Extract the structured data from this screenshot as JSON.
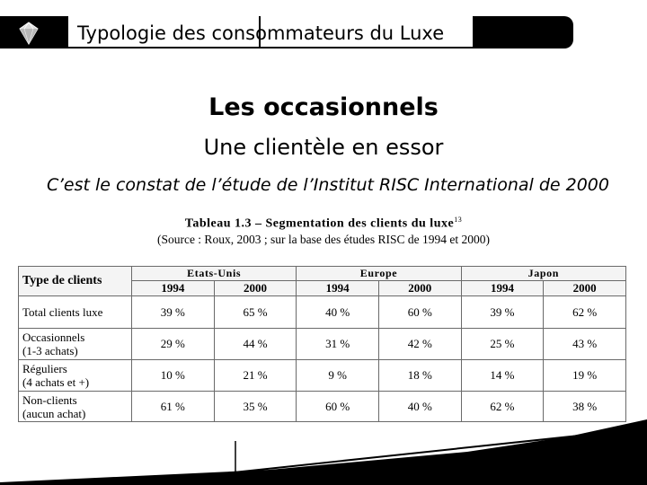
{
  "header": {
    "title": "Typologie des consommateurs du Luxe"
  },
  "heading": "Les occasionnels",
  "subheading": "Une clientèle en essor",
  "description": "C’est le constat de l’étude de l’Institut RISC International de 2000",
  "table": {
    "title": "Tableau 1.3 – Segmentation des clients du luxe",
    "footnote_ref": "13",
    "source": "(Source : Roux, 2003 ; sur la base des études RISC de 1994 et 2000)",
    "type_header": "Type de clients",
    "regions": [
      "Etats-Unis",
      "Europe",
      "Japon"
    ],
    "years": [
      "1994",
      "2000",
      "1994",
      "2000",
      "1994",
      "2000"
    ],
    "rows": [
      {
        "label": [
          "Total clients luxe"
        ],
        "values": [
          "39 %",
          "65 %",
          "40 %",
          "60 %",
          "39 %",
          "62 %"
        ]
      },
      {
        "label": [
          "Occasionnels",
          "(1-3 achats)"
        ],
        "values": [
          "29 %",
          "44 %",
          "31 %",
          "42 %",
          "25 %",
          "43 %"
        ]
      },
      {
        "label": [
          "Réguliers",
          "(4 achats et +)"
        ],
        "values": [
          "10 %",
          "21 %",
          "9 %",
          "18 %",
          "14 %",
          "19 %"
        ]
      },
      {
        "label": [
          "Non-clients",
          "(aucun achat)"
        ],
        "values": [
          "61 %",
          "35 %",
          "60 %",
          "40 %",
          "62 %",
          "38 %"
        ]
      }
    ]
  },
  "icons": {
    "logo": "diamond-icon"
  },
  "colors": {
    "band": "#000000",
    "table_border": "#6a6a6a"
  }
}
